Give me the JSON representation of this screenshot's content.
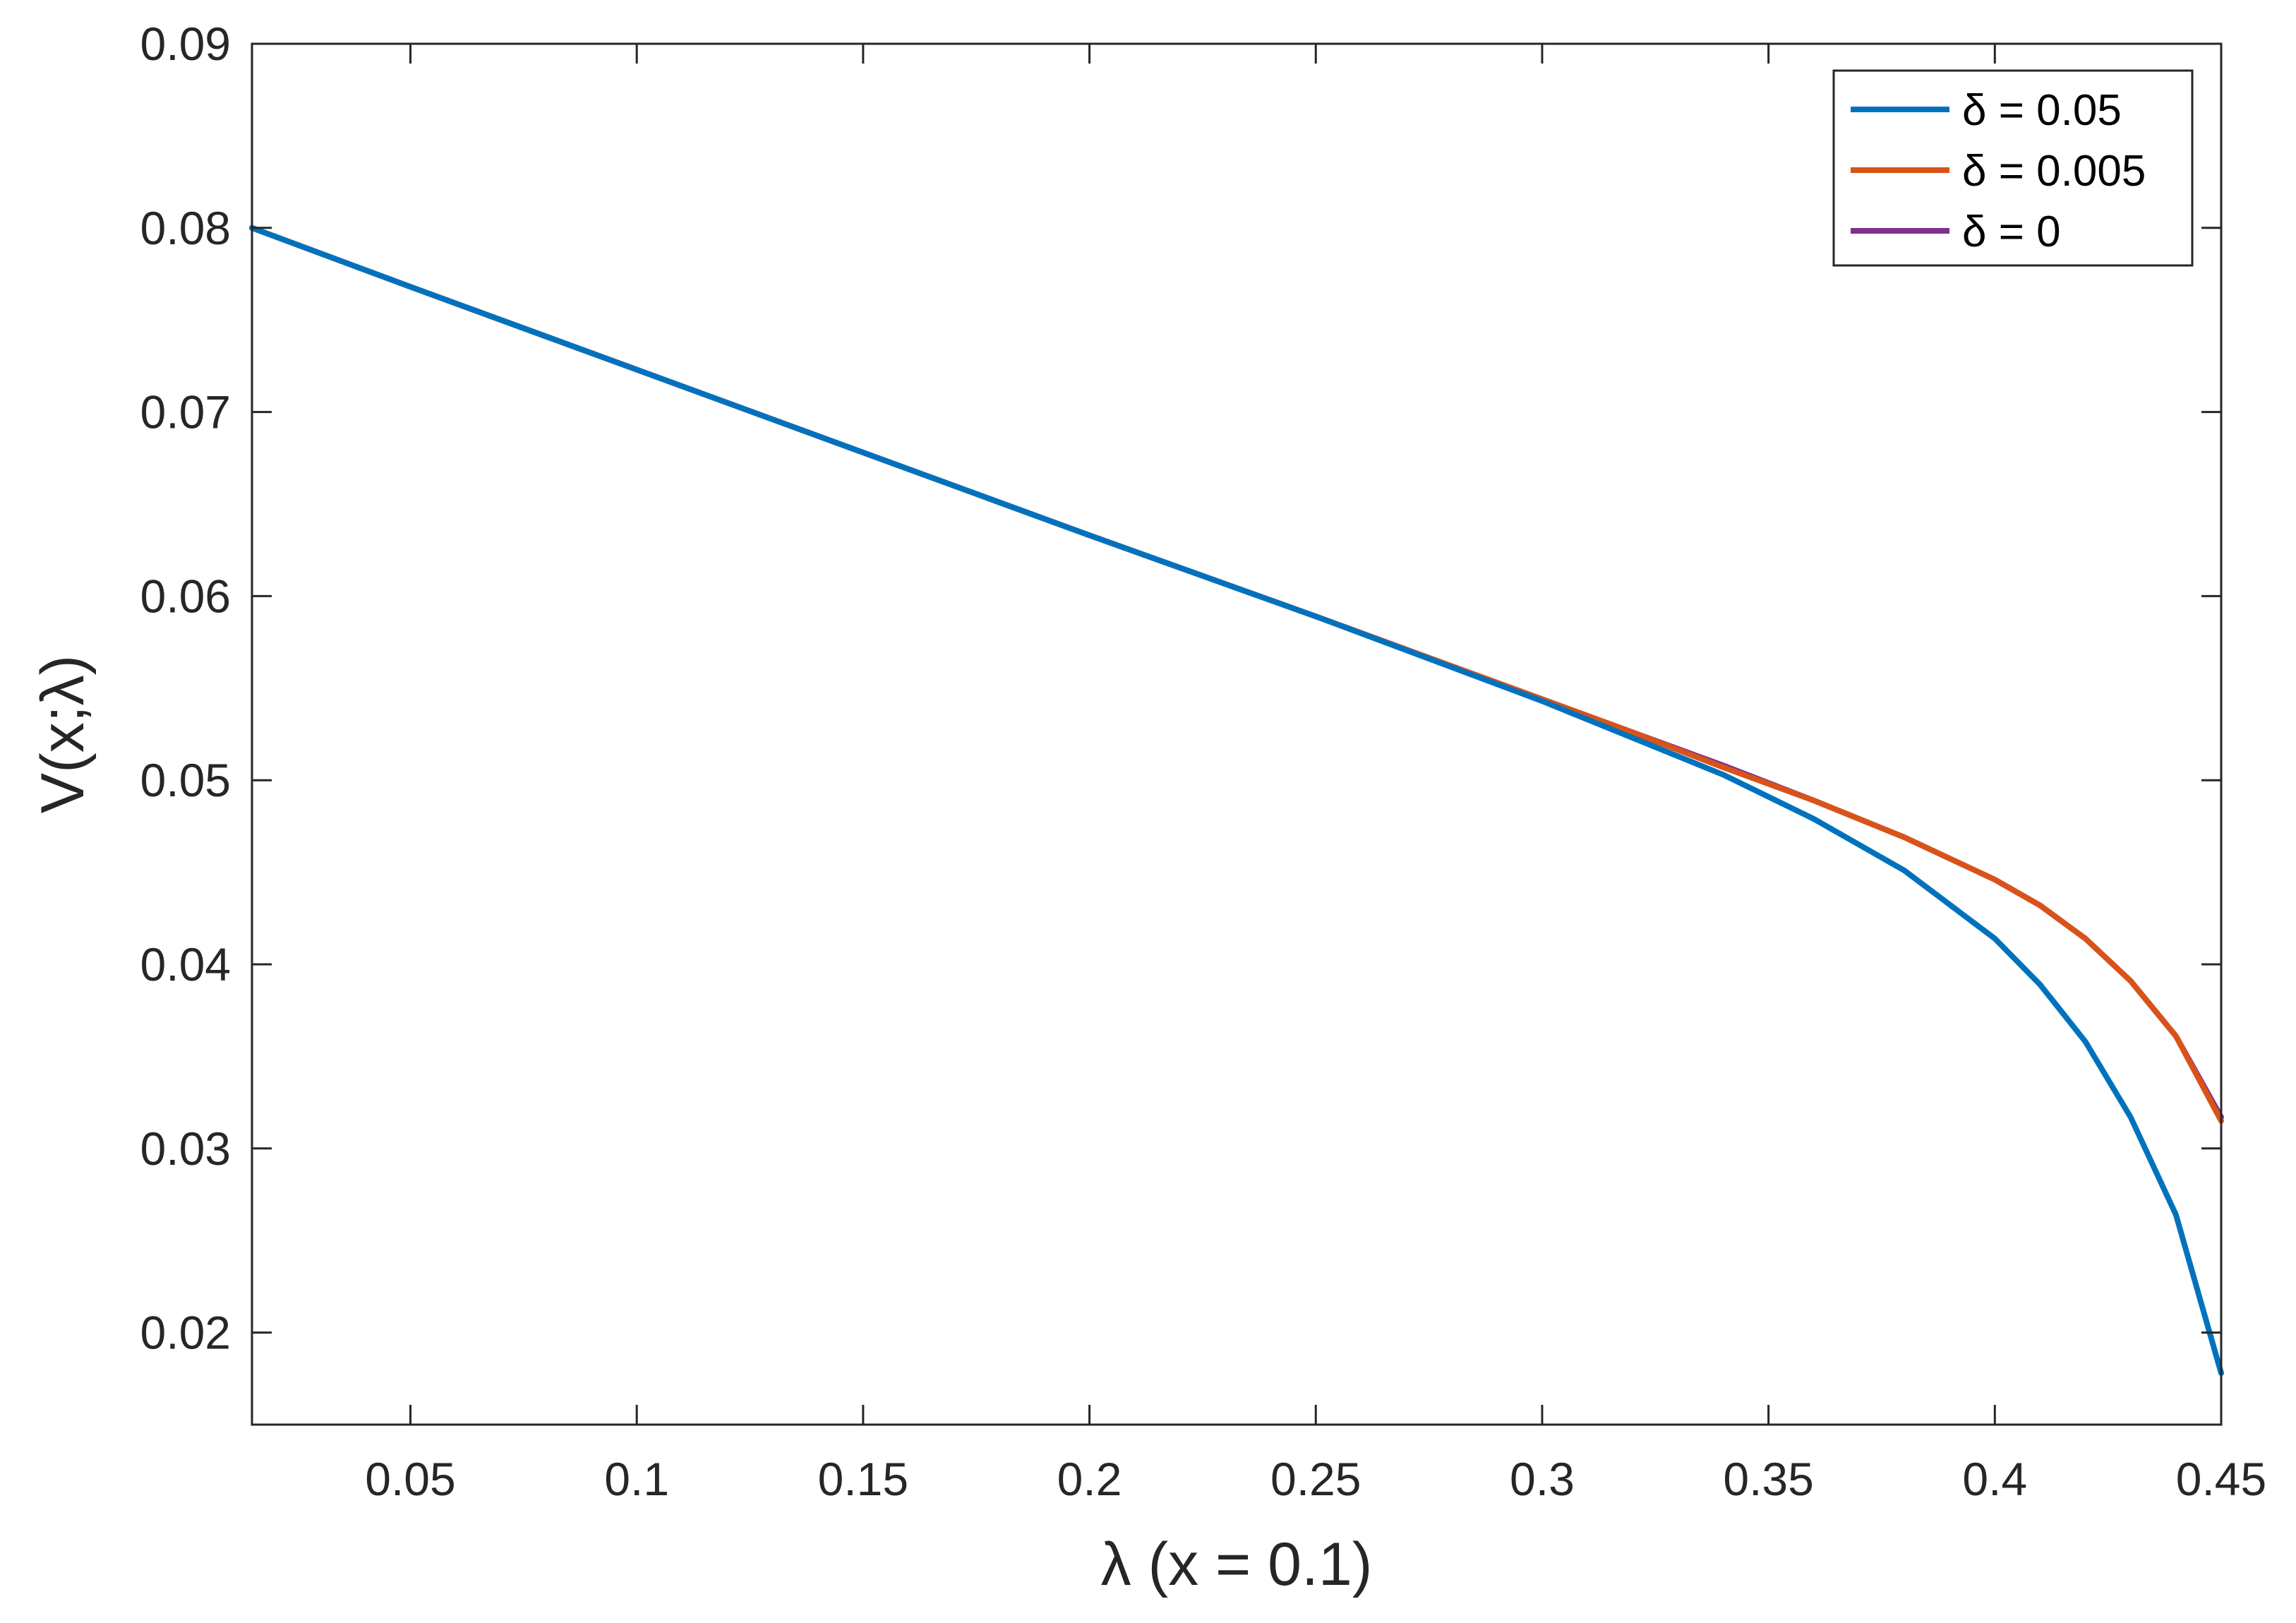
{
  "chart_data": {
    "type": "line",
    "title": "",
    "xlabel": "λ (x = 0.1)",
    "ylabel": "V(x;λ)",
    "xlim": [
      0.015,
      0.45
    ],
    "ylim": [
      0.015,
      0.09
    ],
    "x_ticks": [
      0.05,
      0.1,
      0.15,
      0.2,
      0.25,
      0.3,
      0.35,
      0.4,
      0.45
    ],
    "x_tick_labels": [
      "0.05",
      "0.1",
      "0.15",
      "0.2",
      "0.25",
      "0.3",
      "0.35",
      "0.4",
      "0.45"
    ],
    "y_ticks": [
      0.02,
      0.03,
      0.04,
      0.05,
      0.06,
      0.07,
      0.08,
      0.09
    ],
    "y_tick_labels": [
      "0.02",
      "0.03",
      "0.04",
      "0.05",
      "0.06",
      "0.07",
      "0.08",
      "0.09"
    ],
    "grid": false,
    "legend_position": "top-right",
    "series": [
      {
        "name": "δ = 0.05",
        "color": "#0072BD",
        "x": [
          0.015,
          0.05,
          0.1,
          0.15,
          0.2,
          0.25,
          0.3,
          0.32,
          0.34,
          0.36,
          0.38,
          0.4,
          0.41,
          0.42,
          0.43,
          0.44,
          0.45
        ],
        "y": [
          0.08,
          0.0768,
          0.0723,
          0.0678,
          0.0633,
          0.0589,
          0.0543,
          0.0523,
          0.0503,
          0.0479,
          0.0451,
          0.0414,
          0.0389,
          0.0358,
          0.0317,
          0.0264,
          0.0178
        ]
      },
      {
        "name": "δ = 0.005",
        "color": "#D95319",
        "x": [
          0.015,
          0.05,
          0.1,
          0.15,
          0.2,
          0.25,
          0.3,
          0.32,
          0.34,
          0.36,
          0.38,
          0.4,
          0.41,
          0.42,
          0.43,
          0.44,
          0.45
        ],
        "y": [
          0.08,
          0.0768,
          0.0723,
          0.0678,
          0.0633,
          0.0589,
          0.0544,
          0.0526,
          0.0507,
          0.0489,
          0.0469,
          0.0446,
          0.0432,
          0.0414,
          0.0391,
          0.0361,
          0.0315
        ]
      },
      {
        "name": "δ = 0",
        "color": "#7E2F8E",
        "x": [
          0.015,
          0.05,
          0.1,
          0.15,
          0.2,
          0.25,
          0.3,
          0.32,
          0.34,
          0.36,
          0.38,
          0.4,
          0.41,
          0.42,
          0.43,
          0.44,
          0.45
        ],
        "y": [
          0.08,
          0.0768,
          0.0723,
          0.0678,
          0.0633,
          0.0589,
          0.0544,
          0.0526,
          0.0508,
          0.0489,
          0.0469,
          0.0446,
          0.0432,
          0.0414,
          0.0391,
          0.0361,
          0.0317
        ]
      }
    ]
  }
}
